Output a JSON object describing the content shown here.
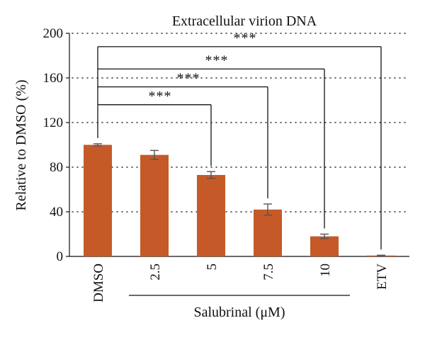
{
  "chart_data": {
    "type": "bar",
    "title": "Extracellular virion DNA",
    "ylabel": "Relative to DMSO (%)",
    "xlabel": "",
    "ylim": [
      0,
      200
    ],
    "yticks": [
      "0",
      "40",
      "80",
      "120",
      "160",
      "200"
    ],
    "grid": true,
    "categories": [
      "DMSO",
      "2.5",
      "5",
      "7.5",
      "10",
      "ETV"
    ],
    "values": [
      100,
      91,
      73,
      42,
      18,
      0.8
    ],
    "errors": [
      1,
      4,
      3,
      5,
      2,
      0.3
    ],
    "bar_color": "#c55a28",
    "group_label": {
      "text": "Salubrinal (μM)",
      "categories": [
        "2.5",
        "5",
        "7.5",
        "10"
      ]
    },
    "significance": [
      {
        "from": "DMSO",
        "to": "5",
        "level": 136,
        "label": "***"
      },
      {
        "from": "DMSO",
        "to": "7.5",
        "level": 152,
        "label": "***"
      },
      {
        "from": "DMSO",
        "to": "10",
        "level": 168,
        "label": "***"
      },
      {
        "from": "DMSO",
        "to": "ETV",
        "level": 188,
        "label": "***"
      }
    ]
  }
}
